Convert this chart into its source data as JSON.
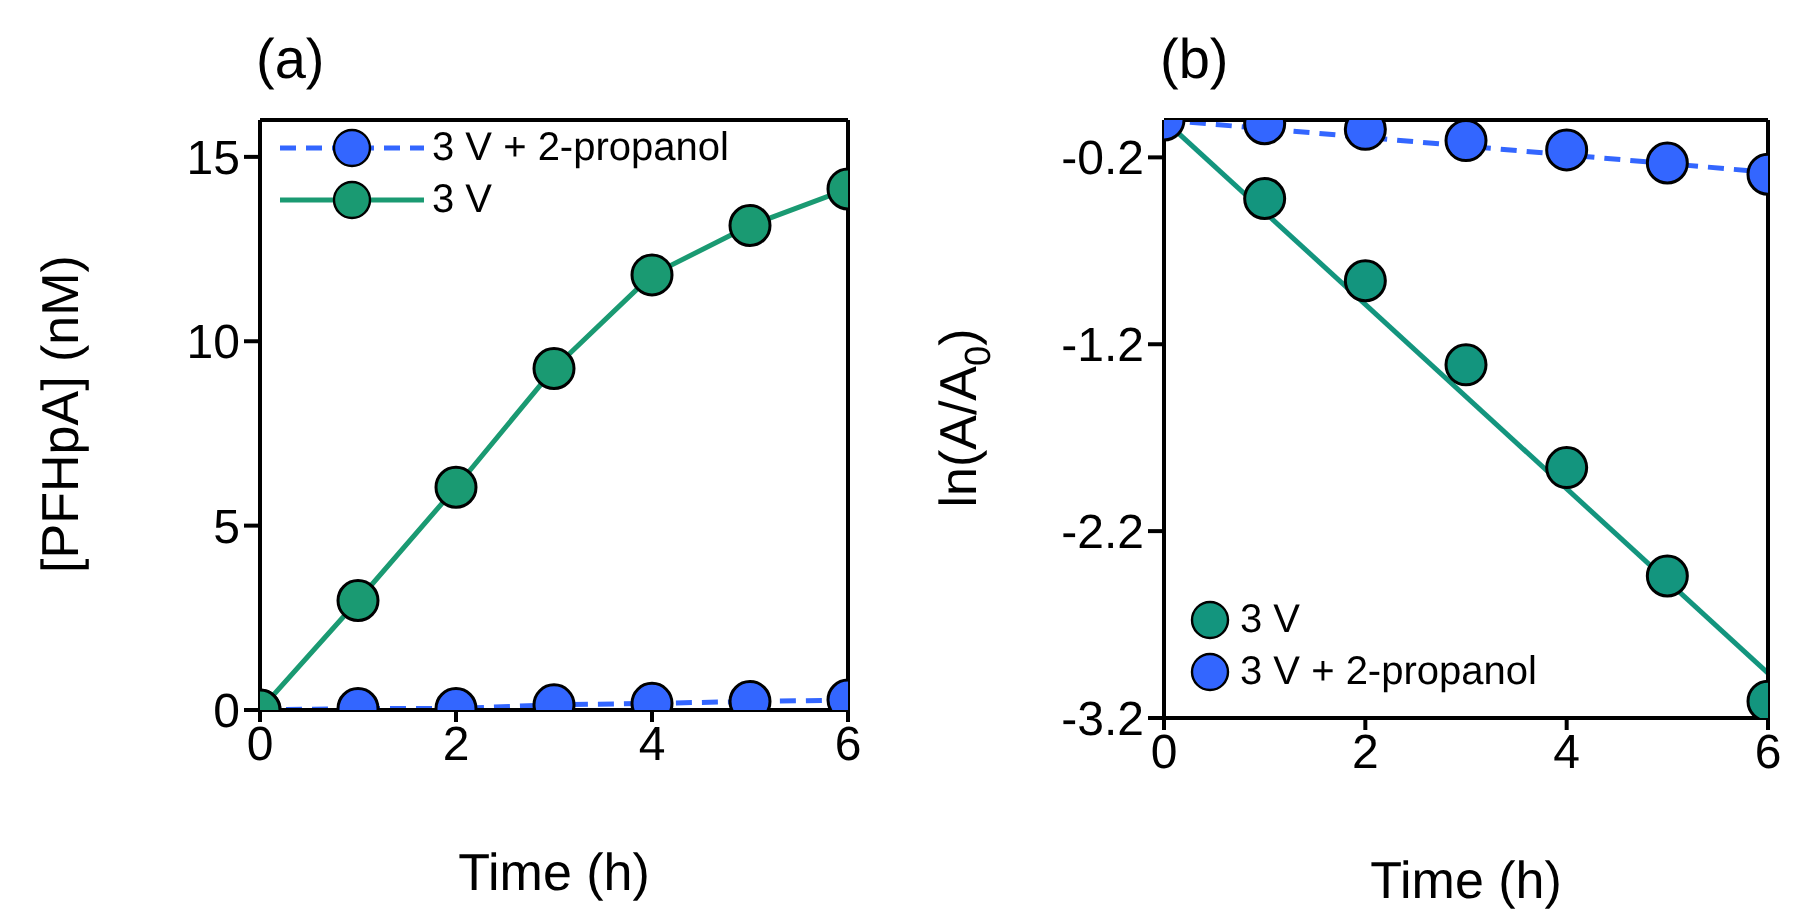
{
  "chart_data": [
    {
      "type": "line",
      "title": "(a)",
      "xlabel": "Time (h)",
      "ylabel": "[PFHpA] (nM)",
      "xlim": [
        0,
        6
      ],
      "xticks": [
        0,
        2,
        4,
        6
      ],
      "ylim": [
        0,
        16
      ],
      "yticks": [
        0,
        5,
        10,
        15
      ],
      "legend": "top left",
      "marker": "circle",
      "series": [
        {
          "name": "3 V + 2-propanol",
          "line_style": "dashed",
          "color": "#3366ff",
          "x": [
            0,
            1,
            2,
            3,
            4,
            5,
            6
          ],
          "values": [
            0,
            0.04,
            0.04,
            0.14,
            0.18,
            0.23,
            0.27
          ]
        },
        {
          "name": "3 V",
          "line_style": "solid",
          "color": "#1a9a72",
          "x": [
            0,
            1,
            2,
            3,
            4,
            5,
            6
          ],
          "values": [
            0,
            2.97,
            6.04,
            9.26,
            11.8,
            13.14,
            14.13
          ]
        }
      ]
    },
    {
      "type": "scatter",
      "title": "(b)",
      "xlabel": "Time (h)",
      "ylabel": "ln(A/A$_{0}$)",
      "xlim": [
        0,
        6
      ],
      "xticks": [
        0,
        2,
        4,
        6
      ],
      "ylim": [
        -3.2,
        0
      ],
      "yticks": [
        -0.2,
        -1.2,
        -2.2,
        -3.2
      ],
      "legend": "bottom left",
      "marker": "circle",
      "series": [
        {
          "type": "line",
          "marker": "none",
          "line_style": "solid",
          "color": "#13957e",
          "x": [
            0,
            6
          ],
          "values": [
            0,
            -2.96
          ]
        },
        {
          "type": "line",
          "marker": "none",
          "line_style": "dashed",
          "color": "#3366ff",
          "x": [
            0,
            6
          ],
          "values": [
            0,
            -0.28
          ]
        },
        {
          "name": "3 V",
          "color": "#13957e",
          "x": [
            1,
            2,
            3,
            4,
            5,
            6
          ],
          "values": [
            -0.42,
            -0.86,
            -1.31,
            -1.86,
            -2.44,
            -3.11
          ]
        },
        {
          "name": "3 V + 2-propanol",
          "color": "#3366ff",
          "x": [
            0,
            1,
            2,
            3,
            4,
            5,
            6
          ],
          "values": [
            0,
            -0.02,
            -0.05,
            -0.11,
            -0.16,
            -0.23,
            -0.29
          ]
        }
      ]
    }
  ]
}
